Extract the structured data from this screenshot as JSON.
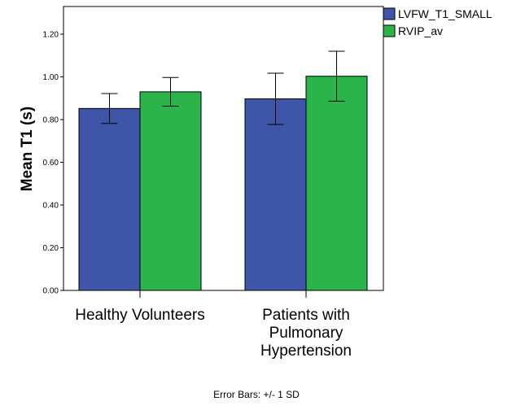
{
  "chart_data": {
    "type": "bar",
    "ylabel": "Mean T1 (s)",
    "xlabel": "",
    "ylim": [
      0,
      1.34
    ],
    "yticks": [
      0.0,
      0.2,
      0.4,
      0.6,
      0.8,
      1.0,
      1.2
    ],
    "ytick_labels": [
      "0.00",
      "0.20",
      "0.40",
      "0.60",
      "0.80",
      "1.00",
      "1.20"
    ],
    "categories": [
      [
        "Healthy Volunteers"
      ],
      [
        "Patients with",
        "Pulmonary",
        "Hypertension"
      ]
    ],
    "series": [
      {
        "name": "LVFW_T1_SMALL",
        "color": "#3f56a8",
        "values": [
          0.852,
          0.897
        ],
        "errors": [
          0.07,
          0.12
        ]
      },
      {
        "name": "RVIP_av",
        "color": "#2bb44a",
        "values": [
          0.93,
          1.003
        ],
        "errors": [
          0.067,
          0.117
        ]
      }
    ],
    "error_bars": "+/- 1 SD",
    "footnote": "Error Bars: +/- 1 SD",
    "legend_position": "top-right",
    "grid": false
  }
}
